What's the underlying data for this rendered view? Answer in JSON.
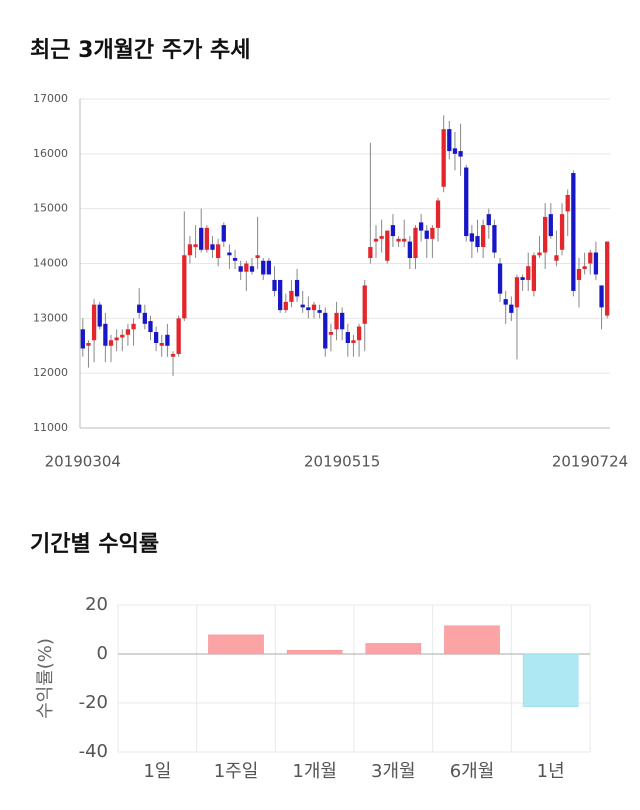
{
  "chart_data": [
    {
      "type": "candlestick",
      "title": "최근 3개월간 주가 추세",
      "categories": [
        "20190304",
        null,
        null,
        null,
        null,
        null,
        null,
        null,
        null,
        null,
        null,
        null,
        null,
        null,
        null,
        null,
        null,
        null,
        null,
        null,
        null,
        null,
        null,
        null,
        null,
        null,
        null,
        null,
        null,
        null,
        null,
        null,
        null,
        null,
        null,
        null,
        null,
        null,
        null,
        null,
        null,
        null,
        null,
        null,
        null,
        null,
        "20190515",
        null,
        null,
        null,
        null,
        null,
        null,
        null,
        null,
        null,
        null,
        null,
        null,
        null,
        null,
        null,
        null,
        null,
        null,
        null,
        null,
        null,
        null,
        null,
        null,
        null,
        null,
        null,
        null,
        null,
        null,
        null,
        null,
        null,
        null,
        null,
        null,
        null,
        null,
        null,
        null,
        null,
        null,
        null,
        null,
        null,
        null,
        "20190724"
      ],
      "open": [
        12800,
        12500,
        12600,
        13250,
        12900,
        12500,
        12600,
        12650,
        12700,
        12800,
        13250,
        13100,
        12950,
        12750,
        12500,
        12700,
        12300,
        12350,
        13000,
        14150,
        14300,
        14650,
        14250,
        14350,
        14100,
        14700,
        14200,
        14100,
        13950,
        13850,
        13950,
        14100,
        14050,
        14050,
        13700,
        13700,
        13150,
        13300,
        13700,
        13250,
        13200,
        13150,
        13150,
        13100,
        12700,
        12800,
        13100,
        12750,
        12550,
        12600,
        12900,
        14100,
        14400,
        14450,
        14050,
        14700,
        14400,
        14400,
        14400,
        14100,
        14750,
        14600,
        14450,
        14650,
        15400,
        16450,
        16100,
        16050,
        15750,
        14550,
        14500,
        14300,
        14900,
        14700,
        14000,
        13350,
        13250,
        13200,
        13750,
        13700,
        13500,
        14150,
        14200,
        14900,
        14050,
        14250,
        14950,
        15650,
        13700,
        13900,
        14000,
        14200,
        13600,
        13050
      ],
      "high": [
        13000,
        12600,
        13350,
        13300,
        13100,
        12700,
        12800,
        12800,
        12900,
        13000,
        13550,
        13250,
        13050,
        12850,
        12700,
        12900,
        12400,
        13050,
        14950,
        14500,
        14700,
        15000,
        14700,
        14500,
        14450,
        14750,
        14350,
        14250,
        14050,
        14050,
        14100,
        14850,
        14100,
        14100,
        13950,
        13700,
        13450,
        13700,
        13900,
        13500,
        13400,
        13300,
        13250,
        13200,
        12900,
        13300,
        13200,
        12900,
        12700,
        12900,
        13700,
        16200,
        14700,
        14800,
        14600,
        14900,
        14500,
        14800,
        14500,
        14700,
        14900,
        14700,
        14700,
        15200,
        16700,
        16600,
        16400,
        16550,
        15800,
        14700,
        14800,
        14800,
        15000,
        14800,
        14100,
        13500,
        13400,
        13800,
        13800,
        14200,
        14200,
        14500,
        15100,
        15100,
        14600,
        15100,
        15350,
        15700,
        14100,
        14200,
        14250,
        14400,
        13600,
        14400
      ],
      "low": [
        12300,
        12100,
        12200,
        12800,
        12200,
        12200,
        12400,
        12400,
        12500,
        12500,
        13000,
        12800,
        12600,
        12400,
        12300,
        12300,
        11950,
        12300,
        12950,
        14000,
        14100,
        14200,
        14200,
        14100,
        13950,
        14300,
        13900,
        13900,
        13700,
        13500,
        13800,
        13900,
        13700,
        13800,
        13400,
        13100,
        13100,
        13200,
        13300,
        13100,
        13000,
        13000,
        13000,
        12300,
        12400,
        12600,
        12600,
        12300,
        12300,
        12300,
        12400,
        14000,
        14100,
        14200,
        14000,
        14300,
        14300,
        14300,
        13900,
        13900,
        14400,
        14100,
        14100,
        14400,
        15300,
        15900,
        15700,
        15600,
        14400,
        14100,
        14200,
        14100,
        14450,
        14100,
        13300,
        12900,
        12950,
        12250,
        13500,
        13500,
        13400,
        14100,
        13900,
        14450,
        13950,
        14150,
        14500,
        13400,
        13200,
        13800,
        13800,
        13700,
        12800,
        13000
      ],
      "close": [
        12450,
        12550,
        13250,
        12850,
        12500,
        12600,
        12650,
        12700,
        12800,
        12900,
        13100,
        12900,
        12750,
        12550,
        12550,
        12500,
        12350,
        13000,
        14150,
        14350,
        14350,
        14250,
        14650,
        14250,
        14350,
        14400,
        14150,
        14050,
        13850,
        14000,
        13850,
        14150,
        13800,
        13800,
        13500,
        13150,
        13300,
        13500,
        13400,
        13200,
        13150,
        13250,
        13100,
        12450,
        12750,
        13100,
        12800,
        12550,
        12600,
        12850,
        13600,
        14300,
        14450,
        14500,
        14600,
        14500,
        14450,
        14450,
        14100,
        14650,
        14600,
        14450,
        14650,
        15150,
        16450,
        16050,
        16000,
        15950,
        14500,
        14400,
        14300,
        14700,
        14700,
        14200,
        13450,
        13250,
        13100,
        13750,
        13700,
        13950,
        14150,
        14200,
        14850,
        14500,
        14150,
        14900,
        15250,
        13500,
        13900,
        13950,
        14200,
        13800,
        13200,
        14400
      ],
      "up_color": "#e3262b",
      "down_color": "#1717c8",
      "wick_color": "#888888",
      "ylim": [
        11000,
        17000
      ],
      "yticks": [
        11000,
        12000,
        13000,
        14000,
        15000,
        16000,
        17000
      ],
      "grid": true
    },
    {
      "type": "bar",
      "title": "기간별 수익률",
      "ylabel": "수익률(%)",
      "categories": [
        "1일",
        "1주일",
        "1개월",
        "3개월",
        "6개월",
        "1년"
      ],
      "values": [
        0,
        7.8,
        1.5,
        4.3,
        11.5,
        -21.5
      ],
      "positive_color": "#fba4a6",
      "negative_color": "#aee9f3",
      "ylim": [
        -40,
        20
      ],
      "yticks": [
        -40,
        -20,
        0,
        20
      ],
      "grid": true
    }
  ]
}
